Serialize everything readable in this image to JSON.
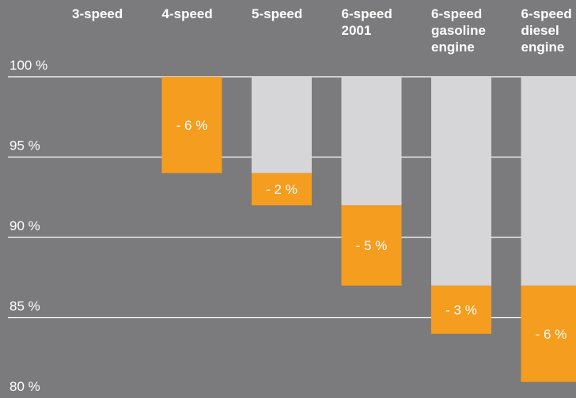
{
  "chart_data": {
    "type": "bar",
    "categories": [
      [
        "3-speed"
      ],
      [
        "4-speed"
      ],
      [
        "5-speed"
      ],
      [
        "6-speed",
        "2001"
      ],
      [
        "6-speed",
        "gasoline",
        "engine"
      ],
      [
        "6-speed",
        "diesel",
        "engine"
      ]
    ],
    "base_values": [
      null,
      100,
      94,
      92,
      87,
      87
    ],
    "values": [
      null,
      94,
      92,
      87,
      84,
      81
    ],
    "data_labels": [
      "",
      "- 6 %",
      "- 2 %",
      "- 5 %",
      "- 3 %",
      "- 6 %"
    ],
    "y_ticks": [
      100,
      95,
      90,
      85,
      80
    ],
    "y_tick_labels": [
      "100 %",
      "95 %",
      "90 %",
      "85 %",
      "80 %"
    ],
    "ylim": [
      80,
      100
    ],
    "grid": true,
    "colors": {
      "background": "#7b7b7d",
      "reduction": "#f59d1e",
      "remaining": "#d6d6d8",
      "gridline": "#ffffff",
      "text": "#ffffff"
    }
  }
}
